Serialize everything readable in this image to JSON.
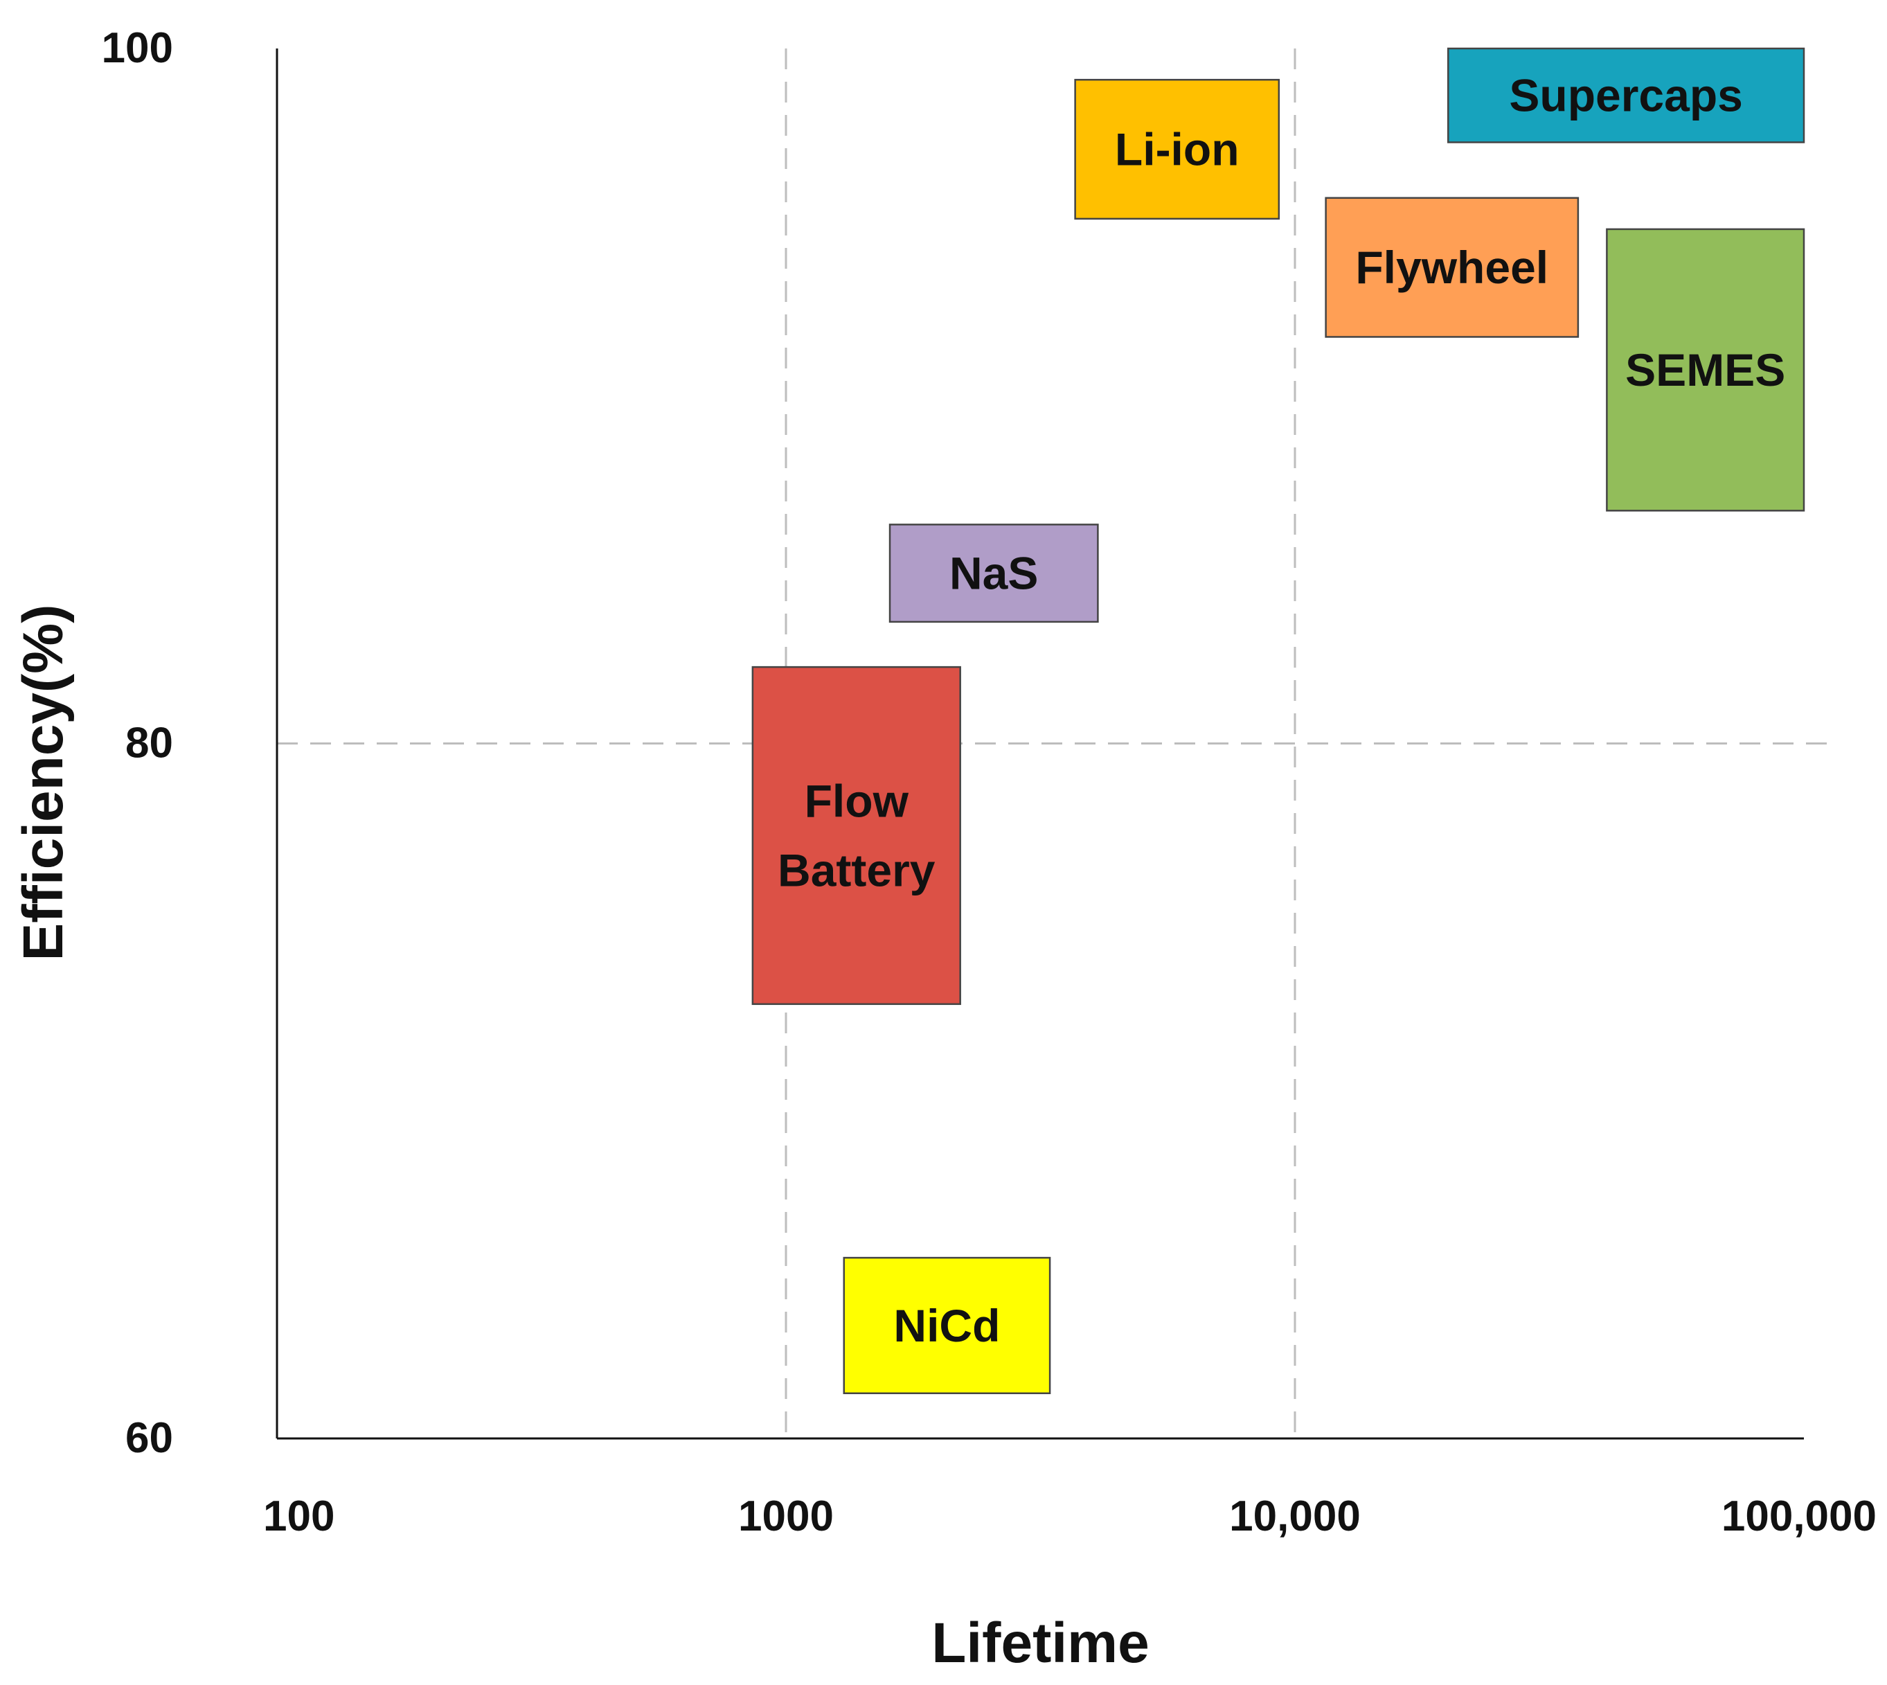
{
  "chart_data": {
    "type": "range-box",
    "title": "",
    "xlabel": "Lifetime",
    "ylabel": "Efficiency(%)",
    "x_scale": "log",
    "xlim": [
      100,
      100000
    ],
    "ylim": [
      60,
      100
    ],
    "x_ticks": [
      {
        "value": 100,
        "label": "100"
      },
      {
        "value": 1000,
        "label": "1000"
      },
      {
        "value": 10000,
        "label": "10,000"
      },
      {
        "value": 100000,
        "label": "100,000"
      }
    ],
    "y_ticks": [
      {
        "value": 60,
        "label": "60"
      },
      {
        "value": 80,
        "label": "80"
      },
      {
        "value": 100,
        "label": "100"
      }
    ],
    "grid": {
      "x_dashed_at": [
        1000,
        10000
      ],
      "y_dashed_at": [
        80
      ]
    },
    "series": [
      {
        "name": "Supercaps",
        "label_lines": [
          "Supercaps"
        ],
        "color": "#17a3bd",
        "x_range": [
          20000,
          100000
        ],
        "y_range": [
          97.3,
          100
        ]
      },
      {
        "name": "Li-ion",
        "label_lines": [
          "Li-ion"
        ],
        "color": "#ffc000",
        "x_range": [
          3700,
          9300
        ],
        "y_range": [
          95.1,
          99.1
        ]
      },
      {
        "name": "Flywheel",
        "label_lines": [
          "Flywheel"
        ],
        "color": "#ff9f55",
        "x_range": [
          11500,
          36000
        ],
        "y_range": [
          91.7,
          95.7
        ]
      },
      {
        "name": "SEMES",
        "label_lines": [
          "SEMES"
        ],
        "color": "#92bd5a",
        "x_range": [
          41000,
          100000
        ],
        "y_range": [
          86.7,
          94.8
        ]
      },
      {
        "name": "NaS",
        "label_lines": [
          "NaS"
        ],
        "color": "#b09dc8",
        "x_range": [
          1600,
          4100
        ],
        "y_range": [
          83.5,
          86.3
        ]
      },
      {
        "name": "Flow Battery",
        "label_lines": [
          "Flow",
          "Battery"
        ],
        "color": "#dc5146",
        "x_range": [
          860,
          2200
        ],
        "y_range": [
          72.5,
          82.2
        ]
      },
      {
        "name": "NiCd",
        "label_lines": [
          "NiCd"
        ],
        "color": "#ffff00",
        "x_range": [
          1300,
          3300
        ],
        "y_range": [
          61.3,
          65.2
        ]
      }
    ]
  }
}
